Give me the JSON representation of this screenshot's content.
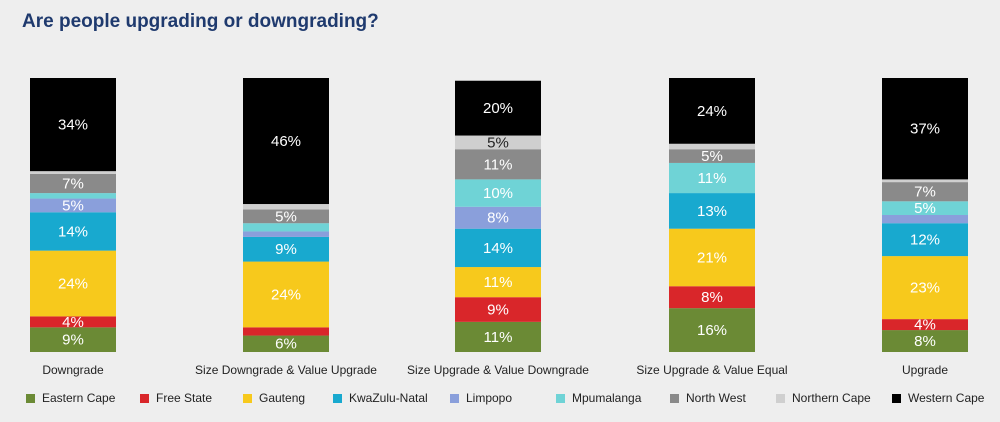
{
  "chart_data": {
    "type": "stacked_bar",
    "title": "Are people upgrading or downgrading?",
    "categories": [
      "Downgrade",
      "Size Downgrade & Value Upgrade",
      "Size Upgrade & Value Downgrade",
      "Size Upgrade & Value Equal",
      "Upgrade"
    ],
    "series": [
      {
        "name": "Eastern Cape",
        "color": "#6b8a35",
        "values": [
          9,
          6,
          11,
          16,
          8
        ],
        "value_labels": [
          "9%",
          "6%",
          "11%",
          "16%",
          "8%"
        ]
      },
      {
        "name": "Free State",
        "color": "#d9262a",
        "values": [
          4,
          3,
          9,
          8,
          4
        ],
        "value_labels": [
          "4%",
          null,
          "9%",
          "8%",
          "4%"
        ]
      },
      {
        "name": "Gauteng",
        "color": "#f7c91c",
        "values": [
          24,
          24,
          11,
          21,
          23
        ],
        "value_labels": [
          "24%",
          "24%",
          "11%",
          "21%",
          "23%"
        ]
      },
      {
        "name": "KwaZulu-Natal",
        "color": "#18a9cf",
        "values": [
          14,
          9,
          14,
          13,
          12
        ],
        "value_labels": [
          "14%",
          "9%",
          "14%",
          "13%",
          "12%"
        ]
      },
      {
        "name": "Limpopo",
        "color": "#8a9fdb",
        "values": [
          5,
          2,
          8,
          0,
          3
        ],
        "value_labels": [
          "5%",
          null,
          "8%",
          null,
          null
        ]
      },
      {
        "name": "Mpumalanga",
        "color": "#6fd3d6",
        "values": [
          2,
          3,
          10,
          11,
          5
        ],
        "value_labels": [
          null,
          null,
          "10%",
          "11%",
          "5%"
        ]
      },
      {
        "name": "North West",
        "color": "#8a8a8a",
        "values": [
          7,
          5,
          11,
          5,
          7
        ],
        "value_labels": [
          "7%",
          "5%",
          "11%",
          "5%",
          "7%"
        ]
      },
      {
        "name": "Northern Cape",
        "color": "#cfcfcf",
        "values": [
          1,
          2,
          5,
          2,
          1
        ],
        "value_labels": [
          null,
          null,
          "5%",
          null,
          null
        ]
      },
      {
        "name": "Western Cape",
        "color": "#000000",
        "values": [
          34,
          46,
          20,
          24,
          37
        ],
        "value_labels": [
          "34%",
          "46%",
          "20%",
          "24%",
          "37%"
        ]
      }
    ]
  }
}
